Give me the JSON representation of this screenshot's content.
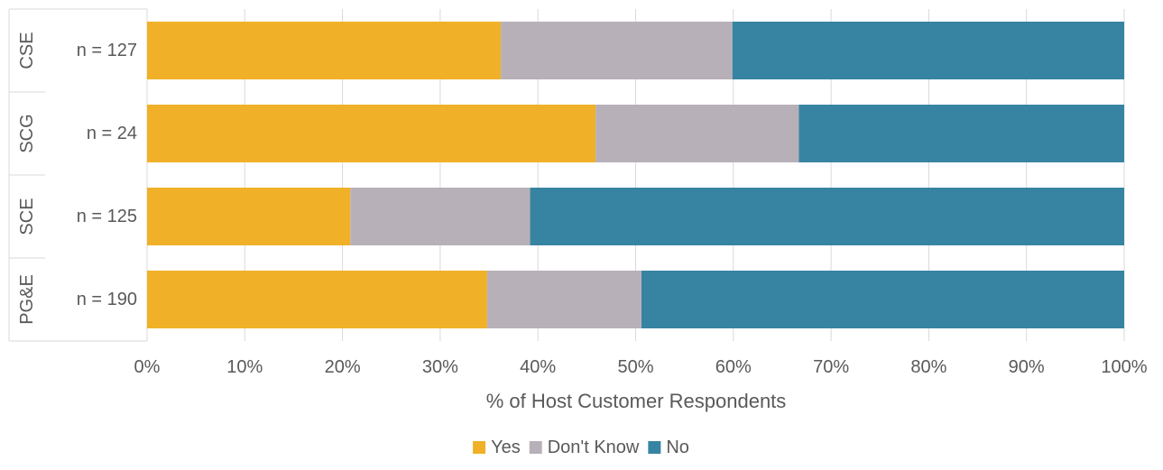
{
  "chart_data": {
    "type": "bar",
    "orientation": "horizontal",
    "stacked": "percent",
    "categories": [
      "CSE",
      "SCG",
      "SCE",
      "PG&E"
    ],
    "n_labels": [
      "n = 127",
      "n = 24",
      "n = 125",
      "n = 190"
    ],
    "series": [
      {
        "name": "Yes",
        "color": "#F0B128",
        "values": [
          36.2,
          45.9,
          20.8,
          34.8
        ]
      },
      {
        "name": "Don't Know",
        "color": "#B8B0B9",
        "values": [
          23.7,
          20.8,
          18.4,
          15.8
        ]
      },
      {
        "name": "No",
        "color": "#3784A2",
        "values": [
          40.1,
          33.3,
          60.8,
          49.4
        ]
      }
    ],
    "x_ticks": [
      "0%",
      "10%",
      "20%",
      "30%",
      "40%",
      "50%",
      "60%",
      "70%",
      "80%",
      "90%",
      "100%"
    ],
    "xlim": [
      0,
      100
    ],
    "xlabel": "% of Host Customer Respondents",
    "ylabel": "",
    "title": "",
    "grid": true,
    "legend_position": "bottom"
  }
}
